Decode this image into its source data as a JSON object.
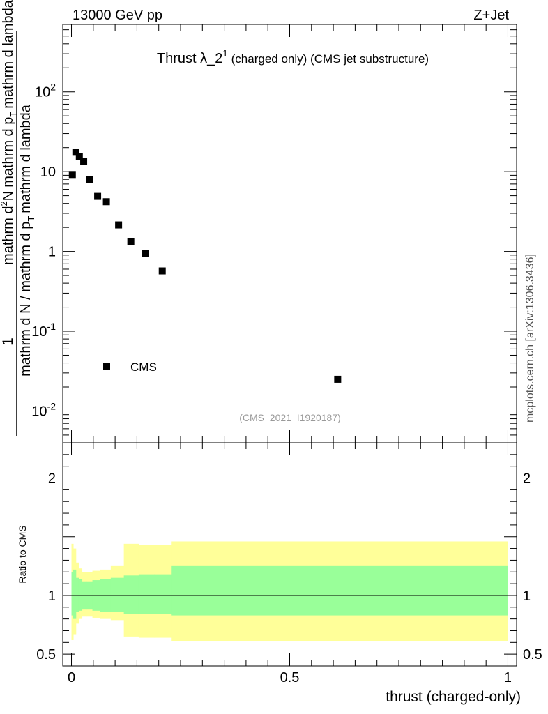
{
  "header": {
    "energy_label": "13000 GeV pp",
    "process_label": "Z+Jet"
  },
  "side_label": "mcplots.cern.ch [arXiv:1306.3436]",
  "chart_data": [
    {
      "type": "scatter",
      "panel": "main",
      "title_main": "Thrust λ_2",
      "title_sup": "1",
      "title_rest": "(charged only) (CMS jet substructure)",
      "analysis_tag": "(CMS_2021_I1920187)",
      "ylabel_parts": {
        "one": "1",
        "den_a": "mathrm d N / mathrm d p",
        "den_sub": "T",
        "den_b": "mathrm d lambda",
        "num_a": "mathrm d",
        "num_sup": "2",
        "num_b": "N",
        "num_c": "mathrm d p",
        "num_sub": "T",
        "num_d": "mathrm d lambda"
      },
      "y_scale": "log",
      "ylim": [
        0.004,
        700
      ],
      "xlim": [
        -0.02,
        1.02
      ],
      "y_ticks": [
        {
          "value": 0.01,
          "base": "10",
          "exp": "-2"
        },
        {
          "value": 0.1,
          "base": "10",
          "exp": "-1"
        },
        {
          "value": 1,
          "base": "1",
          "exp": ""
        },
        {
          "value": 10,
          "base": "10",
          "exp": ""
        },
        {
          "value": 100,
          "base": "10",
          "exp": "2"
        }
      ],
      "legend": {
        "label": "CMS",
        "position": "lower-left"
      },
      "series": [
        {
          "name": "CMS",
          "x": [
            0.002,
            0.01,
            0.018,
            0.028,
            0.042,
            0.06,
            0.08,
            0.108,
            0.136,
            0.17,
            0.208,
            0.61
          ],
          "y": [
            9.2,
            17.5,
            15.5,
            13.5,
            8.0,
            4.9,
            4.2,
            2.15,
            1.32,
            0.95,
            0.57,
            0.025
          ]
        }
      ]
    },
    {
      "type": "area",
      "panel": "ratio",
      "ylabel": "Ratio to CMS",
      "xlabel": "thrust (charged-only)",
      "ylim": [
        0.4,
        2.3
      ],
      "xlim": [
        -0.02,
        1.02
      ],
      "y_ticks": [
        {
          "value": 0.5,
          "label": "0.5"
        },
        {
          "value": 1,
          "label": "1"
        },
        {
          "value": 2,
          "label": "2"
        }
      ],
      "x_ticks": [
        {
          "value": 0,
          "label": "0"
        },
        {
          "value": 0.5,
          "label": "0.5"
        },
        {
          "value": 1,
          "label": "1"
        }
      ],
      "band_colors": {
        "outer": "#ffff99",
        "inner": "#99ff99"
      },
      "bins": [
        0,
        0.004,
        0.01,
        0.016,
        0.024,
        0.034,
        0.048,
        0.066,
        0.09,
        0.12,
        0.154,
        0.19,
        0.228,
        1.0
      ],
      "inner_band": [
        [
          0.83,
          1.2
        ],
        [
          0.8,
          1.22
        ],
        [
          0.86,
          1.15
        ],
        [
          0.87,
          1.14
        ],
        [
          0.88,
          1.12
        ],
        [
          0.88,
          1.12
        ],
        [
          0.87,
          1.13
        ],
        [
          0.86,
          1.14
        ],
        [
          0.86,
          1.15
        ],
        [
          0.84,
          1.17
        ],
        [
          0.84,
          1.18
        ],
        [
          0.84,
          1.18
        ],
        [
          0.83,
          1.25
        ]
      ],
      "outer_band": [
        [
          0.62,
          1.44
        ],
        [
          0.67,
          1.4
        ],
        [
          0.76,
          1.28
        ],
        [
          0.8,
          1.23
        ],
        [
          0.82,
          1.2
        ],
        [
          0.82,
          1.2
        ],
        [
          0.81,
          1.21
        ],
        [
          0.8,
          1.22
        ],
        [
          0.79,
          1.25
        ],
        [
          0.65,
          1.44
        ],
        [
          0.64,
          1.43
        ],
        [
          0.64,
          1.43
        ],
        [
          0.61,
          1.46
        ]
      ]
    }
  ]
}
